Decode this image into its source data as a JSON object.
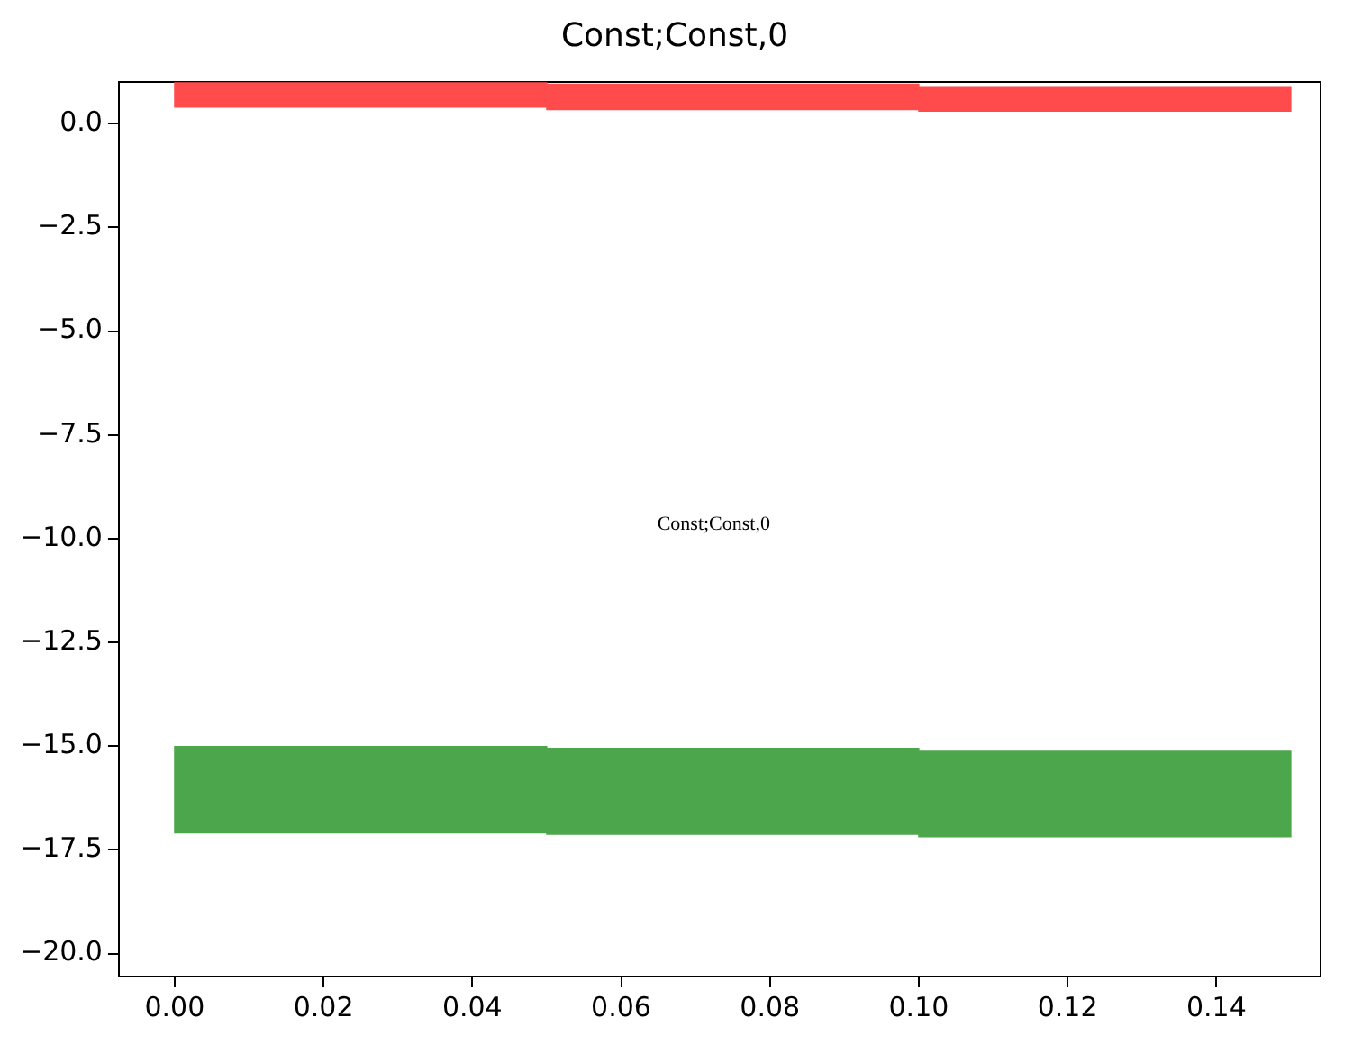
{
  "chart_data": {
    "type": "bar",
    "title": "Const;Const,0",
    "x": [
      0.025,
      0.075,
      0.125
    ],
    "series": [
      {
        "color": "#ff4b4b",
        "base": [
          0.4,
          0.34,
          0.3
        ],
        "values": [
          0.6,
          0.61,
          0.57
        ]
      },
      {
        "color": "#4ca64c",
        "base": [
          -17.09,
          -17.12,
          -17.18
        ],
        "values": [
          2.08,
          2.07,
          2.06
        ]
      }
    ],
    "xlim": [
      -0.0075,
      0.154
    ],
    "ylim": [
      -20.55,
      1.0
    ],
    "xticks": [
      {
        "value": 0,
        "label": "0.00"
      },
      {
        "value": 0.02,
        "label": "0.02"
      },
      {
        "value": 0.04,
        "label": "0.04"
      },
      {
        "value": 0.06,
        "label": "0.06"
      },
      {
        "value": 0.08,
        "label": "0.08"
      },
      {
        "value": 0.1,
        "label": "0.10"
      },
      {
        "value": 0.12,
        "label": "0.12"
      },
      {
        "value": 0.14,
        "label": "0.14"
      }
    ],
    "yticks": [
      {
        "value": 0,
        "label": "0.0"
      },
      {
        "value": -2.5,
        "label": "−2.5"
      },
      {
        "value": -5,
        "label": "−5.0"
      },
      {
        "value": -7.5,
        "label": "−7.5"
      },
      {
        "value": -10,
        "label": "−10.0"
      },
      {
        "value": -12.5,
        "label": "−12.5"
      },
      {
        "value": -15,
        "label": "−15.0"
      },
      {
        "value": -17.5,
        "label": "−17.5"
      },
      {
        "value": -20,
        "label": "−20.0"
      }
    ],
    "grid": false,
    "legend": false,
    "annotations": [
      "Const;Const,0"
    ]
  }
}
